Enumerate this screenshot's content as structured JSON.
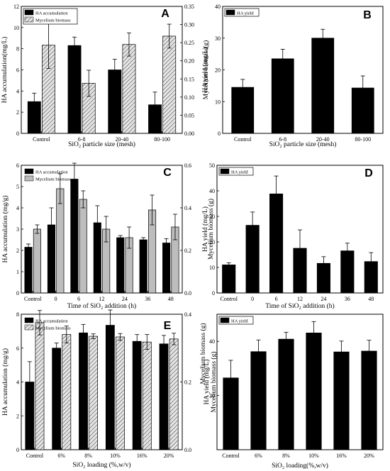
{
  "chart_data": [
    {
      "id": "A",
      "type": "bar",
      "panel_label": "A",
      "categories": [
        "Control",
        "6-8",
        "20-40",
        "80-100"
      ],
      "xlabel": "SiO₂ particle size (mesh)",
      "ylabel": "HA accumulation(mg/L)",
      "y2label": "Mycelium biomass(g)",
      "ylim": [
        0,
        12
      ],
      "yticks": [
        0,
        2,
        4,
        6,
        8,
        10,
        12
      ],
      "y2lim": [
        0,
        0.35
      ],
      "y2ticks": [
        "0.00",
        "0.05",
        "0.10",
        "0.15",
        "0.20",
        "0.25",
        "0.30",
        "0.35"
      ],
      "legend_position": "top-left",
      "series": [
        {
          "name": "HA accumulation",
          "axis": "left",
          "style": "black",
          "values": [
            3.0,
            8.3,
            6.0,
            2.7
          ],
          "errors": [
            0.8,
            0.8,
            1.0,
            1.2
          ]
        },
        {
          "name": "Mycelium biomass",
          "axis": "right",
          "style": "hatch",
          "values": [
            0.243,
            0.138,
            0.245,
            0.268
          ],
          "errors": [
            0.064,
            0.036,
            0.032,
            0.033
          ]
        }
      ]
    },
    {
      "id": "B",
      "type": "bar",
      "panel_label": "B",
      "categories": [
        "Control",
        "6-8",
        "20-40",
        "80-100"
      ],
      "xlabel": "SiO₂ particle size (mesh)",
      "ylabel": "HA yield (mg/L)",
      "ylim": [
        0,
        40
      ],
      "yticks": [
        0,
        10,
        20,
        30,
        40
      ],
      "legend_position": "top-left",
      "series": [
        {
          "name": "HA yield",
          "axis": "left",
          "style": "black",
          "values": [
            14.5,
            23.5,
            30.0,
            14.3
          ],
          "errors": [
            2.5,
            3.0,
            2.8,
            3.8
          ]
        }
      ]
    },
    {
      "id": "C",
      "type": "bar",
      "panel_label": "C",
      "categories": [
        "Control",
        "0",
        "6",
        "12",
        "24",
        "36",
        "48"
      ],
      "xlabel": "Time of SiO₂ addition (h)",
      "ylabel": "HA accumulation  (mg/g)",
      "y2label": "Mycelium biomass (g)",
      "ylim": [
        0,
        6
      ],
      "yticks": [
        0,
        1,
        2,
        3,
        4,
        5,
        6
      ],
      "y2lim": [
        0,
        0.6
      ],
      "y2ticks": [
        "0.0",
        "0.2",
        "0.4",
        "0.6"
      ],
      "legend_position": "top-left",
      "series": [
        {
          "name": "HA accumulation",
          "axis": "left",
          "style": "black",
          "values": [
            2.15,
            3.2,
            5.35,
            3.3,
            2.6,
            2.5,
            2.35
          ],
          "errors": [
            0.15,
            0.8,
            0.75,
            0.8,
            0.1,
            0.1,
            0.2
          ]
        },
        {
          "name": "Mycelium biomass",
          "axis": "right",
          "style": "gray",
          "values": [
            0.3,
            0.49,
            0.44,
            0.3,
            0.26,
            0.39,
            0.31
          ],
          "errors": [
            0.02,
            0.07,
            0.04,
            0.06,
            0.05,
            0.07,
            0.06
          ]
        }
      ]
    },
    {
      "id": "D",
      "type": "bar",
      "panel_label": "D",
      "categories": [
        "Control",
        "0",
        "6",
        "12",
        "24",
        "36",
        "48"
      ],
      "xlabel": "Time of SiO₂ addition (h)",
      "ylabel": "HA yield (mg/L)",
      "ylim": [
        0,
        50
      ],
      "yticks": [
        0,
        10,
        20,
        30,
        40,
        50
      ],
      "legend_position": "top-left",
      "series": [
        {
          "name": "HA yield",
          "axis": "left",
          "style": "black",
          "values": [
            11.0,
            26.5,
            38.8,
            17.5,
            11.6,
            16.5,
            12.3
          ],
          "errors": [
            0.8,
            5.2,
            7.0,
            7.2,
            2.6,
            3.0,
            3.5
          ]
        }
      ]
    },
    {
      "id": "E",
      "type": "bar",
      "panel_label": "E",
      "categories": [
        "Control",
        "6%",
        "8%",
        "10%",
        "16%",
        "20%"
      ],
      "xlabel": "SiO₂ loading (%,w/v)",
      "ylabel": "HA accumulation (mg/g)",
      "y2label": "Mycelium biomass (g)",
      "ylim": [
        0,
        8
      ],
      "yticks": [
        0,
        2,
        4,
        6,
        8
      ],
      "y2lim": [
        0,
        0.4
      ],
      "y2ticks": [
        "0.0",
        "0.2",
        "0.4"
      ],
      "legend_position": "top-left",
      "series": [
        {
          "name": "HA accumulation",
          "axis": "left",
          "style": "black",
          "values": [
            4.0,
            6.0,
            6.9,
            7.35,
            6.4,
            6.25
          ],
          "errors": [
            1.2,
            0.3,
            0.5,
            0.9,
            0.4,
            0.5
          ]
        },
        {
          "name": "Mycelium biomass",
          "axis": "right",
          "style": "hatch",
          "values": [
            0.375,
            0.34,
            0.335,
            0.333,
            0.318,
            0.327
          ],
          "errors": [
            0.036,
            0.025,
            0.007,
            0.01,
            0.022,
            0.017
          ]
        }
      ]
    },
    {
      "id": "F",
      "type": "bar",
      "panel_label": "F",
      "categories": [
        "Control",
        "6%",
        "8%",
        "10%",
        "16%",
        "20%"
      ],
      "xlabel": "SiO₂  loading(%,w/v)",
      "ylabel": "HA yield (mg/L)",
      "y2label": "Mycelium biomass (g)",
      "ylim": [
        0,
        50
      ],
      "yticks": [
        20,
        40
      ],
      "legend_position": "top-left",
      "series": [
        {
          "name": "HA yield",
          "axis": "left",
          "style": "black",
          "values": [
            26.5,
            36.2,
            40.8,
            43.1,
            36.1,
            36.4
          ],
          "errors": [
            6.5,
            4.3,
            2.5,
            4.2,
            4.0,
            4.0
          ]
        }
      ]
    }
  ]
}
